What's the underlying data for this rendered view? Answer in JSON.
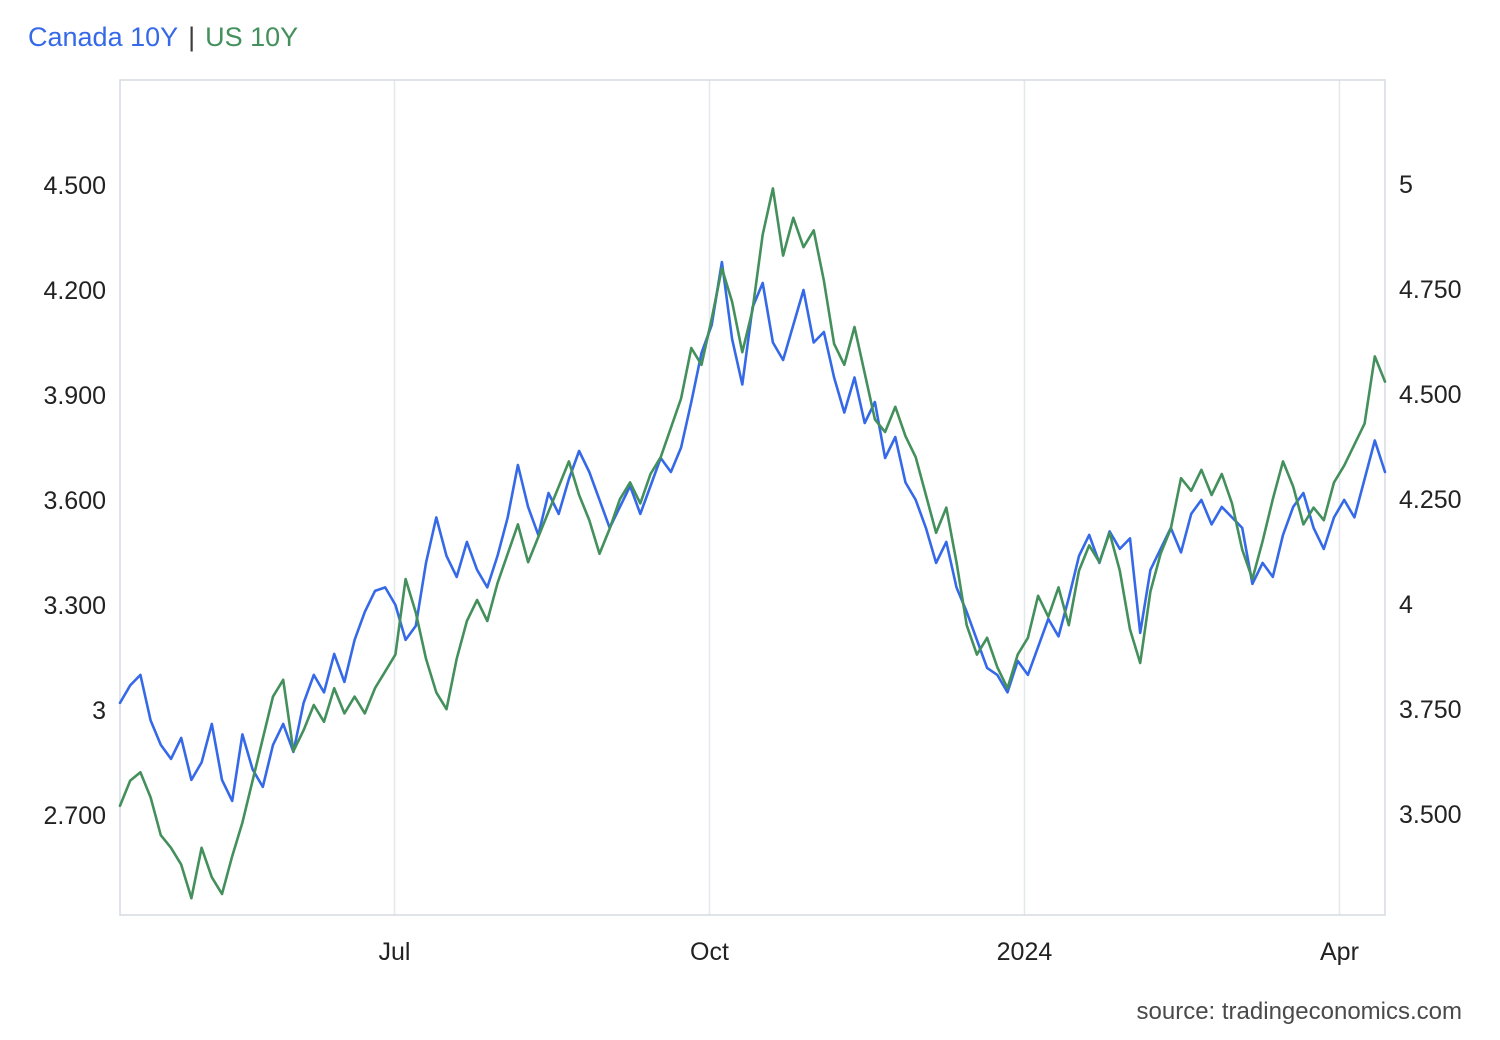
{
  "legend": {
    "series1": "Canada 10Y",
    "separator": "|",
    "series2": "US 10Y"
  },
  "source": "source: tradingeconomics.com",
  "colors": {
    "canada": "#3569e8",
    "us": "#44905c",
    "grid": "#e4e7eb",
    "border": "#d6dae0",
    "text": "#222222",
    "source_text": "#4a4a4a"
  },
  "chart_data": {
    "type": "line",
    "title": "Canada 10Y | US 10Y",
    "xlabel": "",
    "ylabel": "",
    "x_span": "mid-April 2023 to mid-April 2024, daily yields in percent",
    "grid": "vertical-only",
    "legend_position": "top-left",
    "x_ticks": [
      {
        "label": "Jul",
        "t": 0.217
      },
      {
        "label": "Oct",
        "t": 0.466
      },
      {
        "label": "2024",
        "t": 0.715
      },
      {
        "label": "Apr",
        "t": 0.964
      }
    ],
    "left_axis": {
      "series": "Canada 10Y",
      "range": [
        2.414,
        4.8
      ],
      "ticks": [
        {
          "label": "4.500",
          "value": 4.5
        },
        {
          "label": "4.200",
          "value": 4.2
        },
        {
          "label": "3.900",
          "value": 3.9
        },
        {
          "label": "3.600",
          "value": 3.6
        },
        {
          "label": "3.300",
          "value": 3.3
        },
        {
          "label": "3",
          "value": 3.0
        },
        {
          "label": "2.700",
          "value": 2.7
        }
      ]
    },
    "right_axis": {
      "series": "US 10Y",
      "range": [
        3.26,
        5.248
      ],
      "ticks": [
        {
          "label": "5",
          "value": 5.0
        },
        {
          "label": "4.750",
          "value": 4.75
        },
        {
          "label": "4.500",
          "value": 4.5
        },
        {
          "label": "4.250",
          "value": 4.25
        },
        {
          "label": "4",
          "value": 4.0
        },
        {
          "label": "3.750",
          "value": 3.75
        },
        {
          "label": "3.500",
          "value": 3.5
        }
      ]
    },
    "series": [
      {
        "name": "Canada 10Y",
        "axis": "left",
        "color_key": "canada",
        "values": [
          3.02,
          3.07,
          3.1,
          2.97,
          2.9,
          2.86,
          2.92,
          2.8,
          2.85,
          2.96,
          2.8,
          2.74,
          2.93,
          2.83,
          2.78,
          2.9,
          2.96,
          2.88,
          3.02,
          3.1,
          3.05,
          3.16,
          3.08,
          3.2,
          3.28,
          3.34,
          3.35,
          3.3,
          3.2,
          3.24,
          3.42,
          3.55,
          3.44,
          3.38,
          3.48,
          3.4,
          3.35,
          3.44,
          3.55,
          3.7,
          3.58,
          3.5,
          3.62,
          3.56,
          3.66,
          3.74,
          3.68,
          3.6,
          3.52,
          3.58,
          3.64,
          3.56,
          3.64,
          3.72,
          3.68,
          3.75,
          3.88,
          4.02,
          4.1,
          4.28,
          4.06,
          3.93,
          4.15,
          4.22,
          4.05,
          4.0,
          4.1,
          4.2,
          4.05,
          4.08,
          3.95,
          3.85,
          3.95,
          3.82,
          3.88,
          3.72,
          3.78,
          3.65,
          3.6,
          3.52,
          3.42,
          3.48,
          3.35,
          3.28,
          3.2,
          3.12,
          3.1,
          3.05,
          3.14,
          3.1,
          3.18,
          3.26,
          3.21,
          3.32,
          3.44,
          3.5,
          3.42,
          3.51,
          3.46,
          3.49,
          3.22,
          3.4,
          3.46,
          3.52,
          3.45,
          3.56,
          3.6,
          3.53,
          3.58,
          3.55,
          3.52,
          3.36,
          3.42,
          3.38,
          3.5,
          3.58,
          3.62,
          3.52,
          3.46,
          3.55,
          3.6,
          3.55,
          3.66,
          3.77,
          3.68
        ]
      },
      {
        "name": "US 10Y",
        "axis": "right",
        "color_key": "us",
        "values": [
          3.52,
          3.58,
          3.6,
          3.54,
          3.45,
          3.42,
          3.38,
          3.3,
          3.42,
          3.35,
          3.31,
          3.4,
          3.48,
          3.58,
          3.68,
          3.78,
          3.82,
          3.65,
          3.7,
          3.76,
          3.72,
          3.8,
          3.74,
          3.78,
          3.74,
          3.8,
          3.84,
          3.88,
          4.06,
          3.98,
          3.87,
          3.79,
          3.75,
          3.87,
          3.96,
          4.01,
          3.96,
          4.05,
          4.12,
          4.19,
          4.1,
          4.16,
          4.22,
          4.28,
          4.34,
          4.26,
          4.2,
          4.12,
          4.18,
          4.25,
          4.29,
          4.24,
          4.31,
          4.35,
          4.42,
          4.49,
          4.61,
          4.57,
          4.68,
          4.8,
          4.72,
          4.6,
          4.7,
          4.88,
          4.99,
          4.83,
          4.92,
          4.85,
          4.89,
          4.77,
          4.62,
          4.57,
          4.66,
          4.55,
          4.44,
          4.41,
          4.47,
          4.4,
          4.35,
          4.26,
          4.17,
          4.23,
          4.1,
          3.95,
          3.88,
          3.92,
          3.85,
          3.8,
          3.88,
          3.92,
          4.02,
          3.97,
          4.04,
          3.95,
          4.08,
          4.14,
          4.1,
          4.17,
          4.08,
          3.94,
          3.86,
          4.03,
          4.12,
          4.18,
          4.3,
          4.27,
          4.32,
          4.26,
          4.31,
          4.24,
          4.13,
          4.06,
          4.15,
          4.25,
          4.34,
          4.28,
          4.19,
          4.23,
          4.2,
          4.29,
          4.33,
          4.38,
          4.43,
          4.59,
          4.53
        ]
      }
    ]
  }
}
